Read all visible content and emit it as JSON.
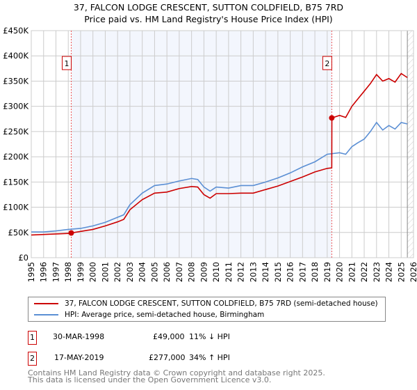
{
  "title": "37, FALCON LODGE CRESCENT, SUTTON COLDFIELD, B75 7RD",
  "subtitle": "Price paid vs. HM Land Registry's House Price Index (HPI)",
  "chart_data": {
    "type": "line",
    "ylim": [
      0,
      450000
    ],
    "xlim": [
      1995,
      2026
    ],
    "yticks": [
      0,
      50000,
      100000,
      150000,
      200000,
      250000,
      300000,
      350000,
      400000,
      450000
    ],
    "ytick_labels": [
      "£0",
      "£50K",
      "£100K",
      "£150K",
      "£200K",
      "£250K",
      "£300K",
      "£350K",
      "£400K",
      "£450K"
    ],
    "xticks": [
      "1995",
      "1996",
      "1997",
      "1998",
      "1999",
      "2000",
      "2001",
      "2002",
      "2003",
      "2004",
      "2005",
      "2006",
      "2007",
      "2008",
      "2009",
      "2010",
      "2011",
      "2012",
      "2013",
      "2014",
      "2015",
      "2016",
      "2017",
      "2018",
      "2019",
      "2020",
      "2021",
      "2022",
      "2023",
      "2024",
      "2025",
      "2026"
    ],
    "grid": true,
    "ownership_period": [
      1998.24,
      2019.37
    ],
    "forecast_from": 2025.5,
    "series": [
      {
        "name": "37, FALCON LODGE CRESCENT, SUTTON COLDFIELD, B75 7RD (semi-detached house)",
        "color": "#cc0000",
        "x": [
          1995,
          1996,
          1997,
          1998,
          1998.24,
          1999,
          2000,
          2001,
          2002,
          2002.5,
          2003,
          2004,
          2005,
          2006,
          2007,
          2008,
          2008.5,
          2009,
          2009.5,
          2010,
          2011,
          2012,
          2013,
          2014,
          2015,
          2016,
          2017,
          2018,
          2019,
          2019.37,
          2019.38,
          2020,
          2020.5,
          2021,
          2021.5,
          2022,
          2022.5,
          2023,
          2023.5,
          2024,
          2024.5,
          2025,
          2025.5
        ],
        "y": [
          45000,
          46000,
          47000,
          48000,
          49000,
          52000,
          56000,
          63000,
          71000,
          76000,
          95000,
          115000,
          128000,
          130000,
          137000,
          141000,
          140000,
          125000,
          118000,
          127000,
          127000,
          128000,
          128000,
          135000,
          142000,
          151000,
          160000,
          170000,
          177000,
          178000,
          277000,
          282000,
          278000,
          300000,
          315000,
          330000,
          345000,
          363000,
          350000,
          355000,
          348000,
          365000,
          357000
        ]
      },
      {
        "name": "HPI: Average price, semi-detached house, Birmingham",
        "color": "#5b8fd4",
        "x": [
          1995,
          1996,
          1997,
          1998,
          1999,
          2000,
          2001,
          2002,
          2002.5,
          2003,
          2004,
          2005,
          2006,
          2007,
          2008,
          2008.5,
          2009,
          2009.5,
          2010,
          2011,
          2012,
          2013,
          2014,
          2015,
          2016,
          2017,
          2018,
          2019,
          2020,
          2020.5,
          2021,
          2021.5,
          2022,
          2022.5,
          2023,
          2023.5,
          2024,
          2024.5,
          2025,
          2025.5
        ],
        "y": [
          51000,
          51000,
          53000,
          56000,
          58000,
          63000,
          70000,
          80000,
          85000,
          105000,
          128000,
          143000,
          146000,
          152000,
          157000,
          155000,
          140000,
          132000,
          140000,
          138000,
          143000,
          143000,
          150000,
          158000,
          168000,
          180000,
          190000,
          205000,
          208000,
          205000,
          220000,
          228000,
          235000,
          250000,
          268000,
          253000,
          262000,
          255000,
          268000,
          265000
        ]
      }
    ],
    "markers": [
      {
        "label": "1",
        "x": 1998.24,
        "y": 49000
      },
      {
        "label": "2",
        "x": 2019.37,
        "y": 277000
      }
    ]
  },
  "legend": {
    "red": "37, FALCON LODGE CRESCENT, SUTTON COLDFIELD, B75 7RD (semi-detached house)",
    "blue": "HPI: Average price, semi-detached house, Birmingham"
  },
  "transactions": [
    {
      "num": "1",
      "date": "30-MAR-1998",
      "price": "£49,000",
      "hpi": "11% ↓ HPI"
    },
    {
      "num": "2",
      "date": "17-MAY-2019",
      "price": "£277,000",
      "hpi": "34% ↑ HPI"
    }
  ],
  "footer": {
    "line1": "Contains HM Land Registry data © Crown copyright and database right 2025.",
    "line2": "This data is licensed under the Open Government Licence v3.0."
  }
}
